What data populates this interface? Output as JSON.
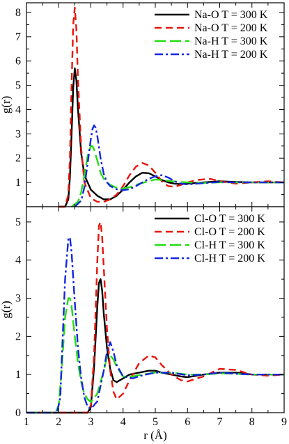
{
  "chart_data": [
    {
      "type": "line",
      "panel": "top",
      "xlabel": "",
      "ylabel": "g(r)",
      "xlim": [
        1,
        9
      ],
      "ylim": [
        0,
        8.4
      ],
      "x_ticks": [
        1,
        2,
        3,
        4,
        5,
        6,
        7,
        8,
        9
      ],
      "y_ticks": [
        1,
        2,
        3,
        4,
        5,
        6,
        7,
        8
      ],
      "x_tick_labels_visible": false,
      "legend_position": "top-right",
      "series": [
        {
          "name": "Na-O T = 300 K",
          "color": "#000000",
          "dash": "solid",
          "x": [
            2.0,
            2.2,
            2.3,
            2.35,
            2.4,
            2.45,
            2.5,
            2.55,
            2.6,
            2.7,
            2.8,
            3.0,
            3.2,
            3.4,
            3.6,
            3.8,
            4.0,
            4.2,
            4.4,
            4.6,
            4.8,
            5.0,
            5.2,
            5.4,
            5.6,
            5.8,
            6.0,
            6.5,
            7.0,
            7.5,
            8.0,
            8.5,
            9.0
          ],
          "y": [
            0,
            0,
            0.3,
            1.2,
            3.0,
            4.9,
            5.7,
            5.2,
            4.0,
            2.2,
            1.3,
            0.7,
            0.45,
            0.3,
            0.3,
            0.45,
            0.7,
            1.0,
            1.25,
            1.4,
            1.38,
            1.25,
            1.1,
            1.0,
            0.95,
            0.93,
            0.95,
            1.0,
            1.05,
            1.02,
            1.0,
            1.0,
            1.0
          ]
        },
        {
          "name": "Na-O T = 200 K",
          "color": "#e8150b",
          "dash": "10,6",
          "x": [
            2.0,
            2.2,
            2.3,
            2.35,
            2.4,
            2.45,
            2.5,
            2.55,
            2.6,
            2.7,
            2.8,
            3.0,
            3.2,
            3.4,
            3.6,
            3.8,
            4.0,
            4.2,
            4.4,
            4.6,
            4.8,
            5.0,
            5.2,
            5.4,
            5.6,
            5.8,
            6.0,
            6.3,
            6.7,
            7.0,
            7.5,
            8.0,
            8.5,
            9.0
          ],
          "y": [
            0,
            0,
            0.5,
            2.0,
            5.0,
            7.5,
            8.2,
            7.3,
            5.2,
            2.4,
            1.0,
            0.35,
            0.2,
            0.2,
            0.3,
            0.5,
            0.85,
            1.3,
            1.65,
            1.8,
            1.7,
            1.4,
            1.05,
            0.85,
            0.82,
            0.9,
            1.0,
            1.1,
            1.15,
            1.05,
            0.95,
            1.0,
            1.05,
            1.0
          ]
        },
        {
          "name": "Na-H T = 300 K",
          "color": "#22dd11",
          "dash": "16,6",
          "x": [
            2.4,
            2.6,
            2.7,
            2.8,
            2.9,
            3.0,
            3.05,
            3.1,
            3.2,
            3.3,
            3.4,
            3.5,
            3.6,
            3.8,
            4.0,
            4.2,
            4.4,
            4.6,
            4.8,
            5.0,
            5.2,
            5.5,
            6.0,
            6.5,
            7.0,
            7.5,
            8.0,
            9.0
          ],
          "y": [
            0,
            0.2,
            0.6,
            1.3,
            2.1,
            2.5,
            2.5,
            2.35,
            1.9,
            1.4,
            1.15,
            1.0,
            0.9,
            0.78,
            0.75,
            0.8,
            0.9,
            0.98,
            1.05,
            1.12,
            1.1,
            1.05,
            1.0,
            0.98,
            1.0,
            1.0,
            1.0,
            1.0
          ]
        },
        {
          "name": "Na-H T = 200 K",
          "color": "#1526e0",
          "dash": "12,4,3,4",
          "x": [
            2.5,
            2.7,
            2.8,
            2.9,
            3.0,
            3.05,
            3.1,
            3.15,
            3.2,
            3.3,
            3.4,
            3.5,
            3.6,
            3.8,
            4.0,
            4.2,
            4.4,
            4.6,
            4.8,
            5.0,
            5.2,
            5.4,
            5.6,
            5.8,
            6.0,
            6.5,
            7.0,
            7.5,
            8.0,
            9.0
          ],
          "y": [
            0,
            0.25,
            0.8,
            1.8,
            2.8,
            3.2,
            3.35,
            3.25,
            2.9,
            2.0,
            1.35,
            1.0,
            0.85,
            0.72,
            0.68,
            0.72,
            0.85,
            1.0,
            1.15,
            1.25,
            1.3,
            1.2,
            1.05,
            0.95,
            0.92,
            0.97,
            1.02,
            1.0,
            1.0,
            1.0
          ]
        }
      ]
    },
    {
      "type": "line",
      "panel": "bottom",
      "xlabel": "r (Å)",
      "ylabel": "g(r)",
      "xlim": [
        1,
        9
      ],
      "ylim": [
        0,
        5.4
      ],
      "x_ticks": [
        1,
        2,
        3,
        4,
        5,
        6,
        7,
        8,
        9
      ],
      "y_ticks": [
        0,
        1,
        2,
        3,
        4,
        5
      ],
      "legend_position": "top-right",
      "series": [
        {
          "name": "Cl-O T = 300 K",
          "color": "#000000",
          "dash": "solid",
          "x": [
            1.0,
            2.9,
            3.0,
            3.1,
            3.2,
            3.25,
            3.3,
            3.35,
            3.4,
            3.5,
            3.6,
            3.7,
            3.8,
            4.0,
            4.2,
            4.5,
            4.8,
            5.0,
            5.2,
            5.5,
            5.8,
            6.0,
            6.5,
            7.0,
            7.5,
            8.0,
            8.5,
            9.0
          ],
          "y": [
            0,
            0,
            0.15,
            1.2,
            2.8,
            3.4,
            3.5,
            3.2,
            2.6,
            1.7,
            1.15,
            0.85,
            0.8,
            0.9,
            1.0,
            1.05,
            1.1,
            1.1,
            1.05,
            1.0,
            0.95,
            0.93,
            1.0,
            1.05,
            1.05,
            1.0,
            1.0,
            1.0
          ]
        },
        {
          "name": "Cl-O T = 200 K",
          "color": "#e8150b",
          "dash": "10,6",
          "x": [
            1.0,
            2.9,
            3.0,
            3.1,
            3.2,
            3.25,
            3.3,
            3.35,
            3.4,
            3.5,
            3.6,
            3.7,
            3.8,
            4.0,
            4.2,
            4.5,
            4.8,
            5.0,
            5.2,
            5.5,
            5.8,
            6.0,
            6.5,
            7.0,
            7.5,
            8.0,
            8.5,
            9.0
          ],
          "y": [
            0,
            0,
            0.2,
            1.5,
            4.0,
            4.9,
            5.0,
            4.6,
            3.8,
            2.2,
            1.1,
            0.55,
            0.35,
            0.5,
            0.85,
            1.3,
            1.5,
            1.45,
            1.25,
            1.0,
            0.85,
            0.82,
            0.95,
            1.15,
            1.12,
            1.0,
            0.97,
            1.0
          ]
        },
        {
          "name": "Cl-H T = 300 K",
          "color": "#22dd11",
          "dash": "16,6",
          "x": [
            1.0,
            1.9,
            2.0,
            2.1,
            2.2,
            2.3,
            2.35,
            2.4,
            2.5,
            2.6,
            2.7,
            2.8,
            2.9,
            3.0,
            3.2,
            3.4,
            3.5,
            3.6,
            3.7,
            3.8,
            4.0,
            4.3,
            4.6,
            5.0,
            5.5,
            6.0,
            6.5,
            7.0,
            7.5,
            8.0,
            9.0
          ],
          "y": [
            0,
            0,
            0.2,
            1.2,
            2.5,
            3.0,
            3.0,
            2.8,
            2.0,
            1.3,
            0.8,
            0.5,
            0.35,
            0.28,
            0.5,
            1.1,
            1.45,
            1.5,
            1.4,
            1.2,
            0.95,
            0.95,
            1.0,
            1.05,
            1.05,
            1.0,
            1.0,
            1.03,
            1.02,
            1.0,
            1.0
          ]
        },
        {
          "name": "Cl-H T = 200 K",
          "color": "#1526e0",
          "dash": "12,4,3,4",
          "x": [
            1.0,
            1.95,
            2.05,
            2.1,
            2.2,
            2.3,
            2.35,
            2.4,
            2.5,
            2.6,
            2.7,
            2.8,
            2.9,
            3.0,
            3.2,
            3.4,
            3.5,
            3.6,
            3.7,
            3.8,
            4.0,
            4.3,
            4.6,
            5.0,
            5.5,
            6.0,
            6.5,
            7.0,
            7.5,
            8.0,
            9.0
          ],
          "y": [
            0,
            0,
            0.4,
            1.5,
            3.5,
            4.55,
            4.6,
            4.2,
            2.9,
            1.7,
            0.9,
            0.4,
            0.15,
            0.1,
            0.3,
            1.1,
            1.6,
            1.85,
            1.6,
            1.25,
            0.95,
            0.9,
            0.98,
            1.05,
            1.05,
            0.98,
            1.0,
            1.05,
            1.02,
            1.0,
            1.0
          ]
        }
      ]
    }
  ]
}
